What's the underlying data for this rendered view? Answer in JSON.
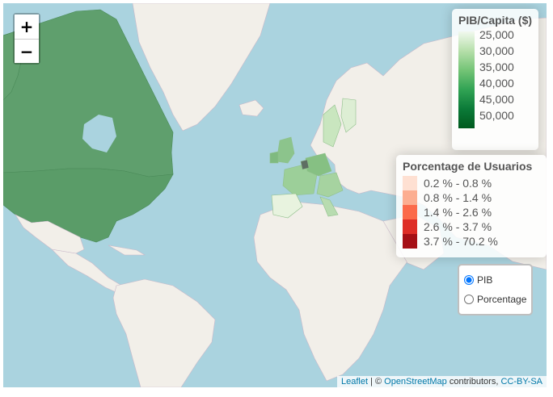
{
  "zoom": {
    "in_label": "+",
    "out_label": "−"
  },
  "legend_pib": {
    "title": "PIB/Capita ($)",
    "ticks": [
      "25,000",
      "30,000",
      "35,000",
      "40,000",
      "45,000",
      "50,000"
    ]
  },
  "legend_pct": {
    "title": "Porcentage de Usuarios",
    "items": [
      {
        "label": "0.2 % - 0.8 %",
        "color": "#fee0d2"
      },
      {
        "label": "0.8 % - 1.4 %",
        "color": "#fcae91"
      },
      {
        "label": "1.4 % - 2.6 %",
        "color": "#fb6a4a"
      },
      {
        "label": "2.6 % - 3.7 %",
        "color": "#de2d26"
      },
      {
        "label": "3.7 % - 70.2 %",
        "color": "#a50f15"
      }
    ]
  },
  "layers": {
    "pib": "PIB",
    "pct": "Porcentage",
    "selected": "PIB"
  },
  "attribution": {
    "leaflet": "Leaflet",
    "sep": " | © ",
    "osm": "OpenStreetMap",
    "contrib": " contributors, ",
    "license": "CC-BY-SA"
  },
  "colors": {
    "water": "#aad3df",
    "land": "#f2efe9",
    "na_fill": "#5d9e6b"
  }
}
